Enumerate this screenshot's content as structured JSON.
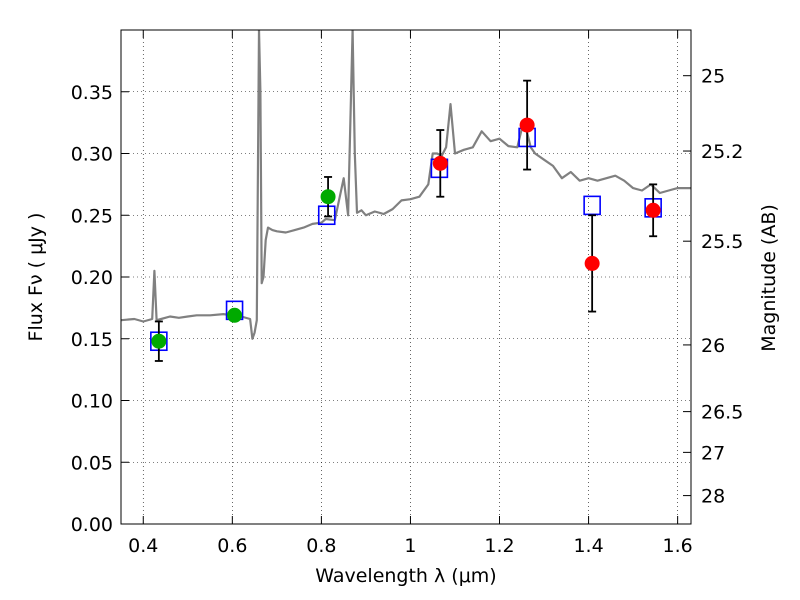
{
  "chart_data": {
    "type": "scatter",
    "xlabel": "Wavelength  λ (μm)",
    "ylabel": "Flux  Fν  ( μJy )",
    "y2label": "Magnitude (AB)",
    "xlim": [
      0.35,
      1.63
    ],
    "ylim": [
      0.0,
      0.4
    ],
    "x_ticks": [
      0.4,
      0.6,
      0.8,
      1.0,
      1.2,
      1.4,
      1.6
    ],
    "x_tick_labels": [
      "0.4",
      "0.6",
      "0.8",
      "1",
      "1.2",
      "1.4",
      "1.6"
    ],
    "y_ticks": [
      0.0,
      0.05,
      0.1,
      0.15,
      0.2,
      0.25,
      0.3,
      0.35
    ],
    "y_tick_labels": [
      "0.00",
      "0.05",
      "0.10",
      "0.15",
      "0.20",
      "0.25",
      "0.30",
      "0.35"
    ],
    "mag_ticks": [
      {
        "label": "25",
        "flux": 0.363
      },
      {
        "label": "25.2",
        "flux": 0.302
      },
      {
        "label": "25.5",
        "flux": 0.229
      },
      {
        "label": "26",
        "flux": 0.145
      },
      {
        "label": "26.5",
        "flux": 0.091
      },
      {
        "label": "27",
        "flux": 0.058
      },
      {
        "label": "28",
        "flux": 0.023
      }
    ],
    "grid": true,
    "colors": {
      "spectrum": "#808080",
      "model_marker": "#0000ff",
      "green_points": "#00aa00",
      "red_points": "#ff0000",
      "error_bars": "#000000"
    },
    "spectrum": {
      "x": [
        0.35,
        0.38,
        0.4,
        0.42,
        0.425,
        0.43,
        0.44,
        0.46,
        0.48,
        0.5,
        0.52,
        0.55,
        0.58,
        0.6,
        0.62,
        0.64,
        0.645,
        0.65,
        0.655,
        0.66,
        0.663,
        0.666,
        0.67,
        0.675,
        0.68,
        0.69,
        0.7,
        0.72,
        0.74,
        0.76,
        0.78,
        0.8,
        0.81,
        0.83,
        0.85,
        0.86,
        0.87,
        0.875,
        0.88,
        0.89,
        0.9,
        0.92,
        0.94,
        0.96,
        0.98,
        1.0,
        1.02,
        1.04,
        1.05,
        1.06,
        1.07,
        1.08,
        1.09,
        1.1,
        1.12,
        1.14,
        1.16,
        1.18,
        1.2,
        1.22,
        1.24,
        1.25,
        1.26,
        1.27,
        1.28,
        1.3,
        1.32,
        1.34,
        1.36,
        1.38,
        1.4,
        1.42,
        1.44,
        1.46,
        1.48,
        1.5,
        1.52,
        1.54,
        1.56,
        1.58,
        1.6,
        1.63
      ],
      "y": [
        0.165,
        0.166,
        0.164,
        0.166,
        0.205,
        0.165,
        0.166,
        0.168,
        0.167,
        0.168,
        0.169,
        0.169,
        0.17,
        0.169,
        0.168,
        0.166,
        0.15,
        0.155,
        0.165,
        0.4,
        0.35,
        0.195,
        0.2,
        0.23,
        0.24,
        0.238,
        0.237,
        0.236,
        0.238,
        0.24,
        0.243,
        0.244,
        0.247,
        0.246,
        0.28,
        0.25,
        0.4,
        0.3,
        0.252,
        0.254,
        0.25,
        0.253,
        0.251,
        0.255,
        0.262,
        0.263,
        0.265,
        0.275,
        0.3,
        0.3,
        0.298,
        0.305,
        0.34,
        0.3,
        0.303,
        0.305,
        0.318,
        0.31,
        0.312,
        0.306,
        0.305,
        0.32,
        0.32,
        0.305,
        0.3,
        0.295,
        0.29,
        0.28,
        0.285,
        0.278,
        0.28,
        0.278,
        0.28,
        0.282,
        0.278,
        0.272,
        0.27,
        0.275,
        0.268,
        0.27,
        0.272,
        0.272
      ]
    },
    "model_points": [
      {
        "x": 0.435,
        "y": 0.148
      },
      {
        "x": 0.605,
        "y": 0.173
      },
      {
        "x": 0.812,
        "y": 0.25
      },
      {
        "x": 1.065,
        "y": 0.288
      },
      {
        "x": 1.262,
        "y": 0.313
      },
      {
        "x": 1.408,
        "y": 0.258
      },
      {
        "x": 1.545,
        "y": 0.256
      }
    ],
    "observed_points": [
      {
        "x": 0.435,
        "y": 0.148,
        "err": 0.016,
        "color": "green"
      },
      {
        "x": 0.605,
        "y": 0.169,
        "err": 0.0,
        "color": "green"
      },
      {
        "x": 0.815,
        "y": 0.265,
        "err": 0.016,
        "color": "green"
      },
      {
        "x": 1.067,
        "y": 0.292,
        "err": 0.027,
        "color": "red"
      },
      {
        "x": 1.262,
        "y": 0.323,
        "err": 0.036,
        "color": "red"
      },
      {
        "x": 1.408,
        "y": 0.211,
        "err": 0.039,
        "color": "red"
      },
      {
        "x": 1.545,
        "y": 0.254,
        "err": 0.021,
        "color": "red"
      }
    ]
  }
}
